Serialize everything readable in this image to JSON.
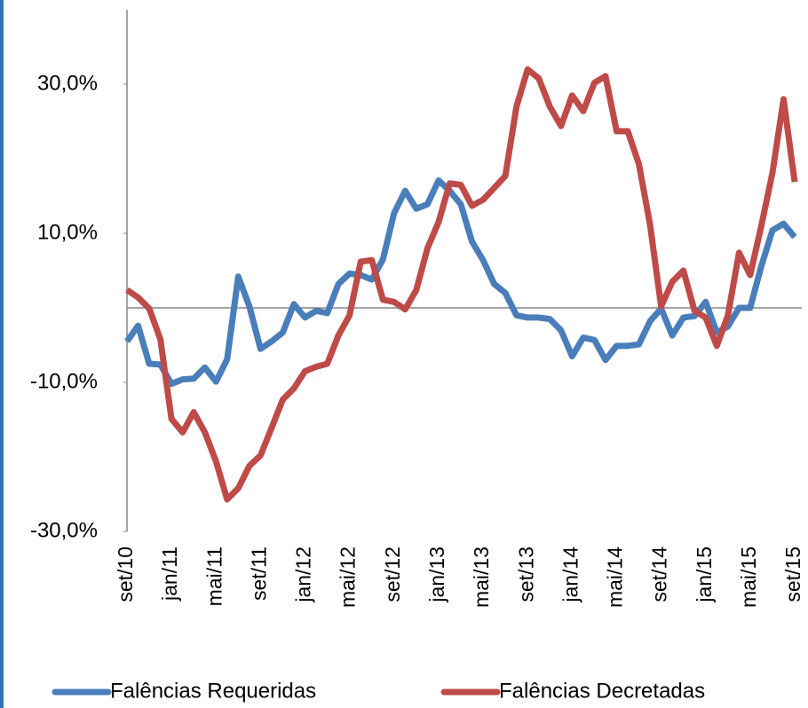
{
  "chart_data": {
    "type": "line",
    "categories": [
      "set/10",
      null,
      null,
      null,
      "jan/11",
      null,
      null,
      null,
      "mai/11",
      null,
      null,
      null,
      "set/11",
      null,
      null,
      null,
      "jan/12",
      null,
      null,
      null,
      "mai/12",
      null,
      null,
      null,
      "set/12",
      null,
      null,
      null,
      "jan/13",
      null,
      null,
      null,
      "mai/13",
      null,
      null,
      null,
      "set/13",
      null,
      null,
      null,
      "jan/14",
      null,
      null,
      null,
      "mai/14",
      null,
      null,
      null,
      "set/14",
      null,
      null,
      null,
      "jan/15",
      null,
      null,
      null,
      "mai/15",
      null,
      null,
      null,
      "set/15"
    ],
    "series": [
      {
        "name": "Falências Requeridas",
        "color": "#4a7ebb",
        "values": [
          -4.5,
          -2.4,
          -7.5,
          -7.6,
          -10.2,
          -9.6,
          -9.5,
          -8.0,
          -9.9,
          -6.9,
          4.2,
          0.2,
          -5.5,
          -4.5,
          -3.3,
          0.5,
          -1.3,
          -0.4,
          -0.7,
          3.2,
          4.6,
          4.4,
          3.8,
          6.5,
          12.7,
          15.7,
          13.3,
          13.9,
          17.1,
          15.7,
          13.9,
          8.9,
          6.4,
          3.2,
          2.0,
          -1.0,
          -1.3,
          -1.3,
          -1.5,
          -3.0,
          -6.5,
          -4.0,
          -4.3,
          -7.0,
          -5.1,
          -5.1,
          -4.9,
          -1.8,
          -0.1,
          -3.7,
          -1.3,
          -1.1,
          0.8,
          -3.3,
          -2.5,
          0.0,
          0.0,
          5.6,
          10.4,
          11.3,
          9.5
        ]
      },
      {
        "name": "Falências Decretadas",
        "color": "#be4b48",
        "values": [
          2.4,
          1.4,
          -0.1,
          -4.2,
          -14.9,
          -16.7,
          -14.0,
          -16.7,
          -20.6,
          -25.7,
          -24.2,
          -21.2,
          -19.8,
          -16.1,
          -12.3,
          -10.8,
          -8.5,
          -7.9,
          -7.5,
          -3.7,
          -1.0,
          6.2,
          6.4,
          1.1,
          0.8,
          -0.2,
          2.4,
          8.0,
          11.5,
          16.7,
          16.5,
          13.7,
          14.5,
          16.1,
          17.7,
          27.0,
          32.0,
          30.8,
          27.0,
          24.4,
          28.5,
          26.4,
          30.2,
          31.1,
          23.7,
          23.7,
          19.3,
          11.2,
          0.2,
          3.5,
          5.0,
          -0.4,
          -1.3,
          -5.1,
          -1.0,
          7.4,
          4.4,
          11.0,
          18.1,
          28.0,
          16.9
        ]
      }
    ],
    "ylim": [
      -30,
      40
    ],
    "yticks": [
      {
        "value": -30,
        "label": "-30,0%"
      },
      {
        "value": -10,
        "label": "-10,0%"
      },
      {
        "value": 10,
        "label": "10,0%"
      },
      {
        "value": 30,
        "label": "30,0%"
      }
    ]
  }
}
